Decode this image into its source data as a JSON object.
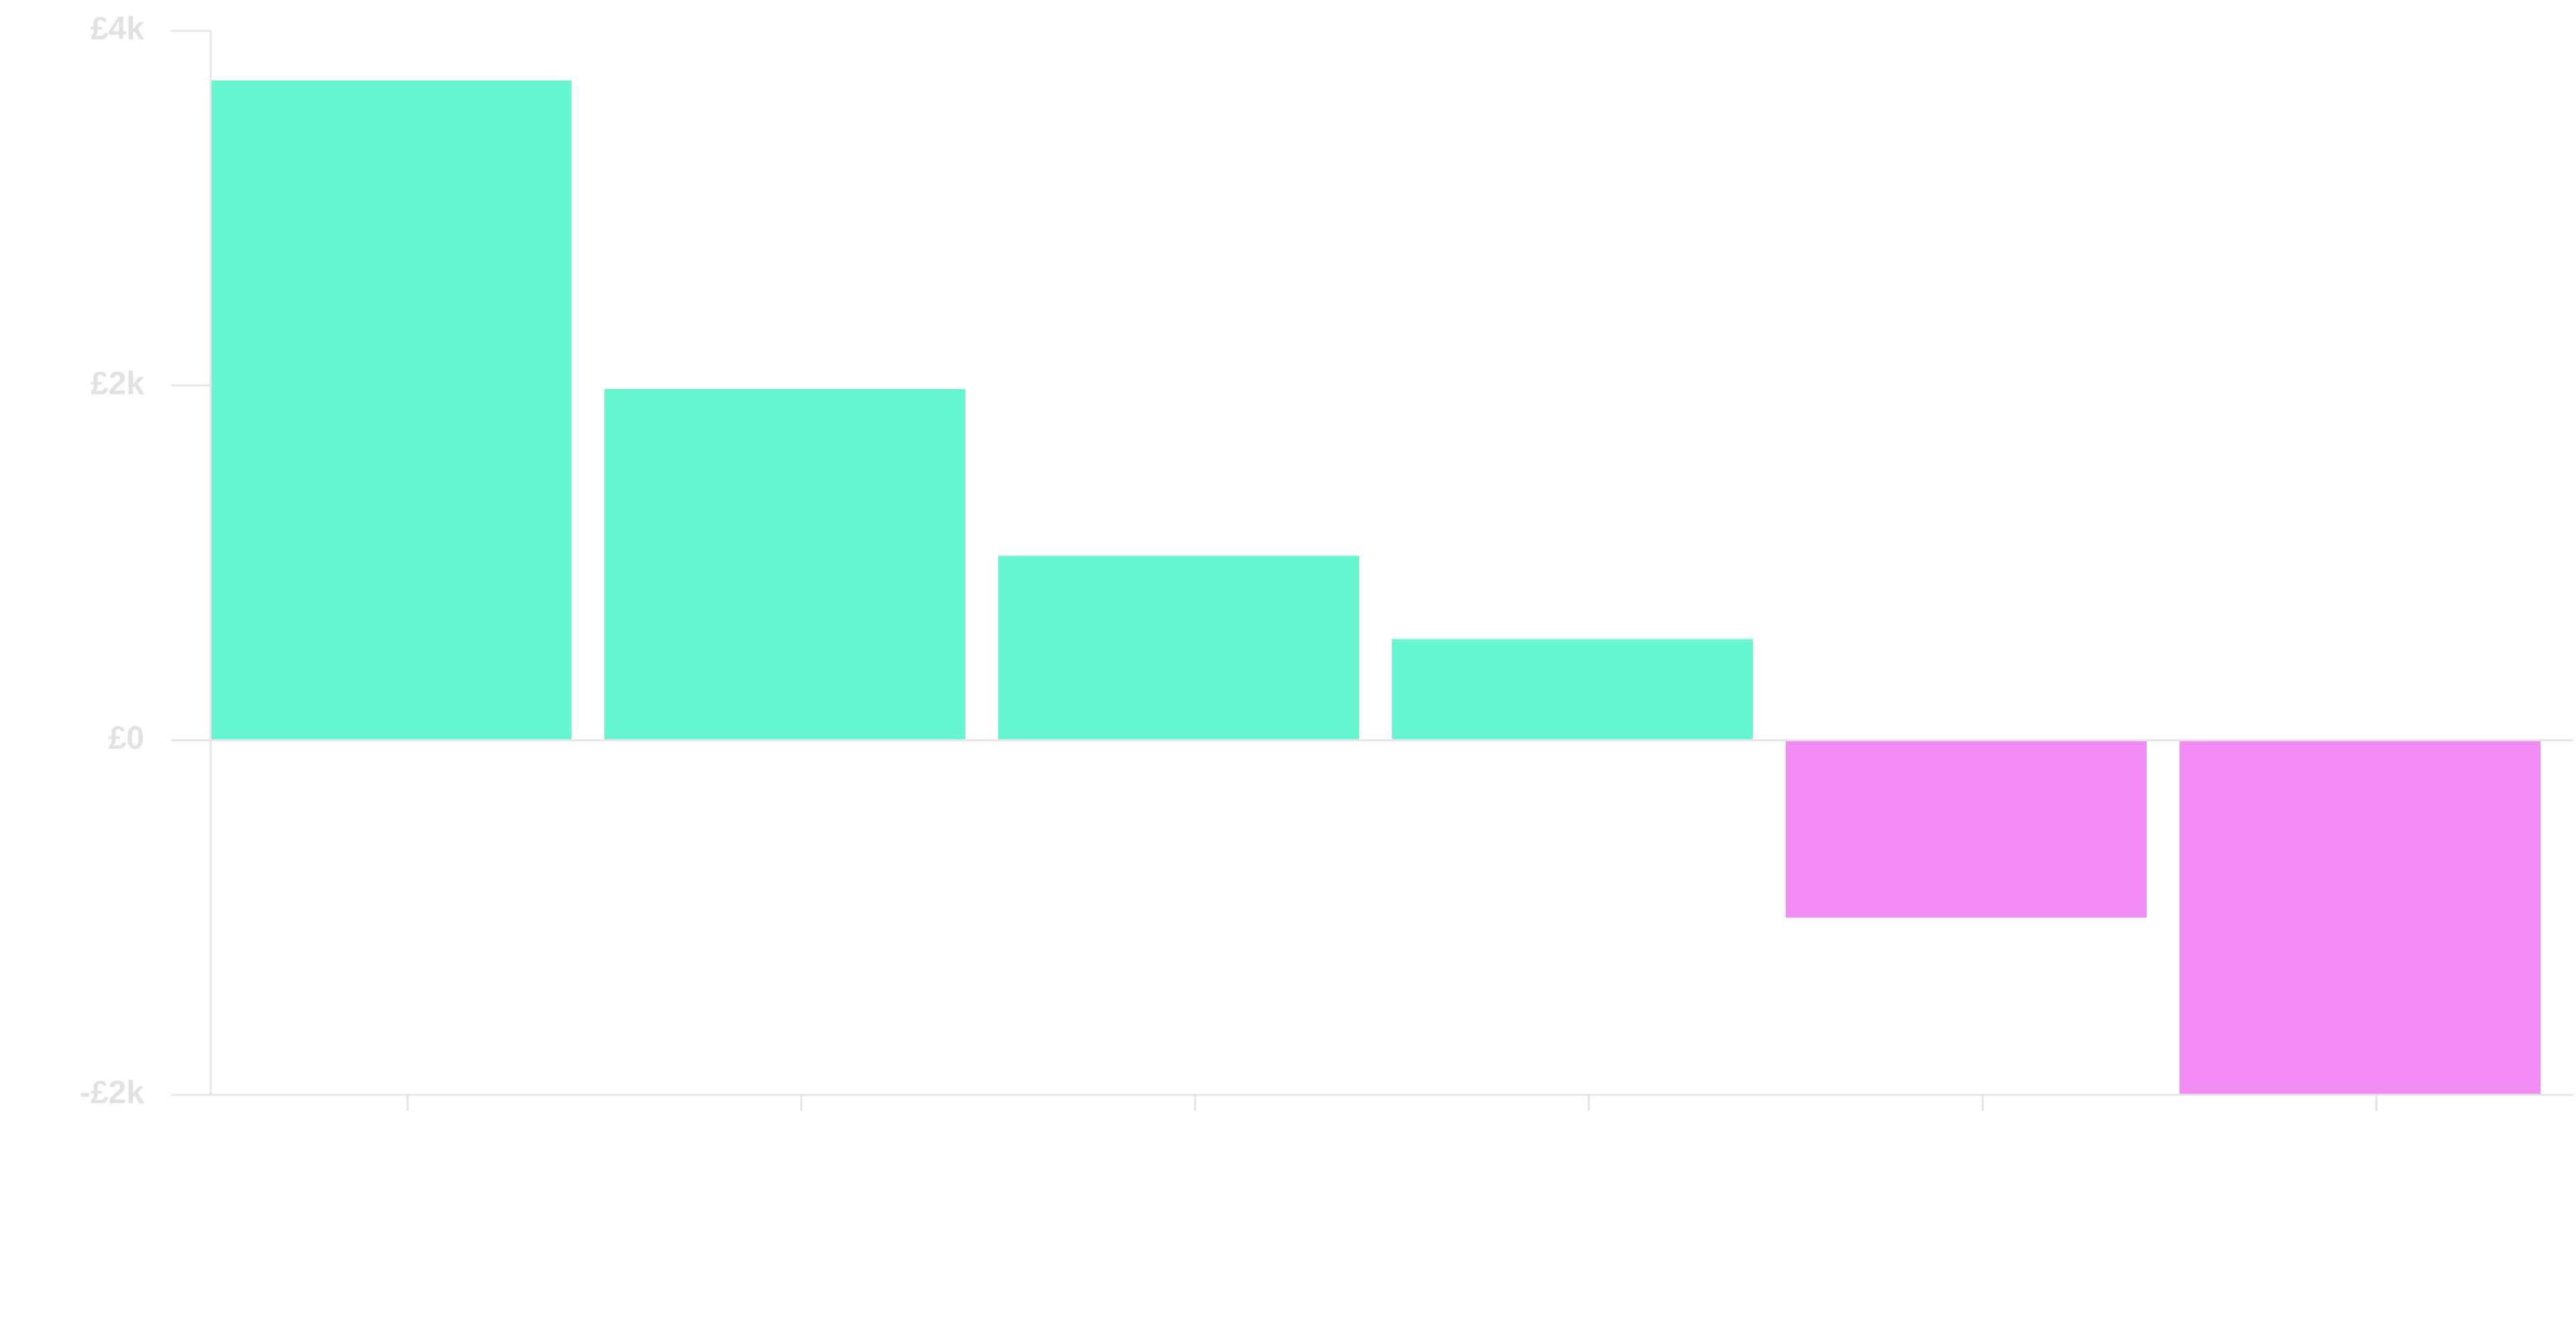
{
  "chart_data": {
    "type": "bar",
    "title": "",
    "xlabel": "",
    "ylabel": "",
    "categories": [
      "",
      "",
      "",
      "",
      "",
      ""
    ],
    "values": [
      3720,
      1980,
      1040,
      570,
      -1000,
      -2000
    ],
    "ylim": [
      -2000,
      4000
    ],
    "yticks": [
      {
        "value": -2000,
        "label": "-£2k"
      },
      {
        "value": 0,
        "label": "£0"
      },
      {
        "value": 2000,
        "label": "£2k"
      },
      {
        "value": 4000,
        "label": "£4k"
      }
    ],
    "colors": {
      "positive": "#66f7d0",
      "negative": "#f48cf6",
      "axis": "#e6e6e6",
      "tick_text": "#e2e2e2"
    },
    "grid": false,
    "legend": "none"
  }
}
